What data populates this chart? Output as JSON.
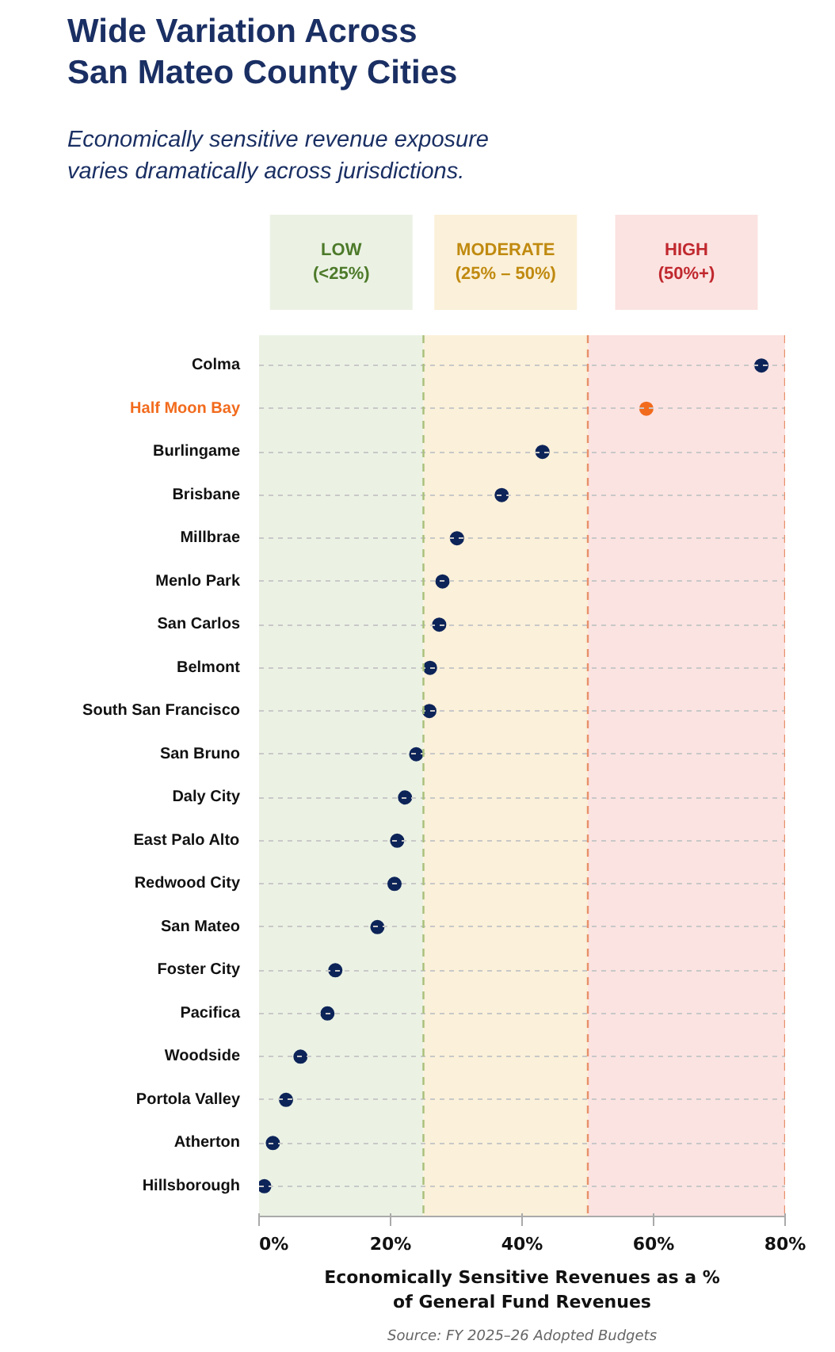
{
  "chart_data": {
    "type": "scatter",
    "title": "Wide Variation Across\nSan Mateo County Cities",
    "subtitle": "Economically sensitive revenue exposure\nvaries dramatically across jurisdictions.",
    "orientation": "horizontal",
    "categories": [
      "Colma",
      "Half Moon Bay",
      "Burlingame",
      "Brisbane",
      "Millbrae",
      "Menlo Park",
      "San Carlos",
      "Belmont",
      "South San Francisco",
      "San Bruno",
      "Daly City",
      "East Palo Alto",
      "Redwood City",
      "San Mateo",
      "Foster City",
      "Pacifica",
      "Woodside",
      "Portola Valley",
      "Atherton",
      "Hillsborough"
    ],
    "values": [
      76.4,
      58.9,
      43.1,
      36.9,
      30.1,
      27.9,
      27.4,
      26.0,
      25.9,
      23.9,
      22.2,
      21.0,
      20.6,
      18.0,
      11.6,
      10.4,
      6.3,
      4.1,
      2.1,
      0.8
    ],
    "colors": [
      "#0d2459",
      "#f26b1d",
      "#0d2459",
      "#0d2459",
      "#0d2459",
      "#0d2459",
      "#0d2459",
      "#0d2459",
      "#0d2459",
      "#0d2459",
      "#0d2459",
      "#0d2459",
      "#0d2459",
      "#0d2459",
      "#0d2459",
      "#0d2459",
      "#0d2459",
      "#0d2459",
      "#0d2459",
      "#0d2459"
    ],
    "marker": "circle",
    "xlim": [
      0,
      80
    ],
    "xticks": [
      {
        "value": 0,
        "label": "0%"
      },
      {
        "value": 20,
        "label": "20%"
      },
      {
        "value": 40,
        "label": "40%"
      },
      {
        "value": 60,
        "label": "60%"
      },
      {
        "value": 80,
        "label": "80%"
      }
    ],
    "xlabel": "Economically Sensitive Revenues as a %\nof General Fund Revenues",
    "bands": [
      {
        "axis": "x",
        "from": 0,
        "to": 25,
        "label": "LOW\n(<25%)",
        "color": "#ebf2e4"
      },
      {
        "axis": "x",
        "from": 25,
        "to": 50,
        "label": "MODERATE\n(25% – 50%)",
        "color": "#fbf0d9"
      },
      {
        "axis": "x",
        "from": 50,
        "to": 80,
        "label": "HIGH\n(50%+)",
        "color": "#fbe3e1"
      }
    ],
    "ref_lines": [
      {
        "axis": "x",
        "value": 25,
        "color": "#a8c07a",
        "line_style": "dashed"
      },
      {
        "axis": "x",
        "value": 50,
        "color": "#e8906a",
        "line_style": "dashed"
      },
      {
        "axis": "x",
        "value": 80,
        "color": "#e8906a",
        "line_style": "dashed"
      }
    ],
    "grid": "y",
    "annotations": [
      "Source: FY 2025–26 Adopted Budgets"
    ]
  }
}
